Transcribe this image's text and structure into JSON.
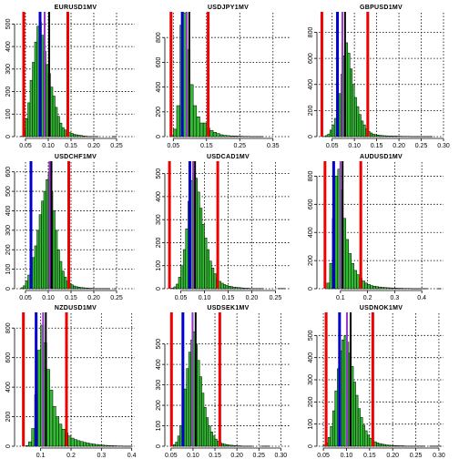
{
  "figure": {
    "rows": 3,
    "cols": 3
  },
  "colors": {
    "bar_fill": "#33bb33",
    "bar_stroke": "#000000",
    "grid": "#000000",
    "red_line": "#ee0000",
    "blue_line": "#0000cc",
    "purple_line": "#9933cc",
    "black_line": "#000000"
  },
  "chart_data": [
    {
      "type": "bar",
      "title": "EURUSD1MV",
      "xlim": [
        0.03,
        0.29
      ],
      "ylim": [
        0,
        550
      ],
      "xticks": [
        0.05,
        0.1,
        0.15,
        0.2,
        0.25
      ],
      "xtick_labels": [
        "0.05",
        "0.10",
        "0.15",
        "0.20",
        "0.25"
      ],
      "yticks": [
        0,
        100,
        200,
        300,
        400,
        500
      ],
      "ytick_labels": [
        "0",
        "100",
        "200",
        "300",
        "400",
        "500"
      ],
      "bin_start": 0.04,
      "bin_width": 0.005,
      "values": [
        2,
        30,
        80,
        150,
        250,
        330,
        420,
        490,
        510,
        450,
        380,
        320,
        280,
        220,
        180,
        130,
        90,
        60,
        40,
        30,
        25,
        18,
        14,
        10,
        8,
        6,
        5,
        3,
        2,
        1,
        1,
        1,
        1,
        1,
        0,
        0,
        0,
        0,
        0,
        0,
        1,
        1
      ],
      "vlines": [
        {
          "x": 0.046,
          "color": "red"
        },
        {
          "x": 0.143,
          "color": "red"
        },
        {
          "x": 0.082,
          "color": "blue"
        },
        {
          "x": 0.092,
          "color": "purple"
        },
        {
          "x": 0.102,
          "color": "black"
        }
      ]
    },
    {
      "type": "bar",
      "title": "USDJPY1MV",
      "xlim": [
        0.03,
        0.4
      ],
      "ylim": [
        0,
        1000
      ],
      "xticks": [
        0.05,
        0.15,
        0.25,
        0.35
      ],
      "xtick_labels": [
        "0.05",
        "0.15",
        "0.25",
        "0.35"
      ],
      "yticks": [
        0,
        200,
        400,
        600,
        800
      ],
      "ytick_labels": [
        "0",
        "200",
        "400",
        "600",
        "800"
      ],
      "bin_start": 0.04,
      "bin_width": 0.01,
      "values": [
        10,
        60,
        250,
        900,
        1000,
        700,
        420,
        250,
        160,
        110,
        110,
        70,
        50,
        35,
        25,
        15,
        10,
        8,
        6,
        5,
        4,
        3,
        2,
        2,
        1,
        1,
        1,
        1,
        0,
        0,
        0,
        0,
        0
      ],
      "vlines": [
        {
          "x": 0.043,
          "color": "red"
        },
        {
          "x": 0.155,
          "color": "red"
        },
        {
          "x": 0.077,
          "color": "blue"
        },
        {
          "x": 0.09,
          "color": "purple"
        },
        {
          "x": 0.098,
          "color": "black"
        }
      ]
    },
    {
      "type": "bar",
      "title": "GBPUSD1MV",
      "xlim": [
        0.02,
        0.3
      ],
      "ylim": [
        0,
        950
      ],
      "xticks": [
        0.05,
        0.1,
        0.15,
        0.2,
        0.25,
        0.3
      ],
      "xtick_labels": [
        "0.05",
        "0.10",
        "0.15",
        "0.20",
        "0.25",
        "0.30"
      ],
      "yticks": [
        0,
        200,
        400,
        600,
        800
      ],
      "ytick_labels": [
        "0",
        "200",
        "400",
        "600",
        "800"
      ],
      "bin_start": 0.03,
      "bin_width": 0.005,
      "values": [
        2,
        8,
        20,
        50,
        90,
        140,
        220,
        330,
        480,
        620,
        720,
        640,
        520,
        400,
        300,
        230,
        170,
        120,
        90,
        60,
        40,
        28,
        20,
        15,
        12,
        10,
        8,
        7,
        6,
        5,
        5,
        4,
        4,
        3,
        3,
        2,
        2,
        2,
        2,
        1,
        1,
        1,
        1,
        1,
        1,
        1,
        1,
        1,
        1,
        0,
        0,
        0,
        0,
        0
      ],
      "vlines": [
        {
          "x": 0.027,
          "color": "red"
        },
        {
          "x": 0.13,
          "color": "red"
        },
        {
          "x": 0.062,
          "color": "blue"
        },
        {
          "x": 0.073,
          "color": "purple"
        },
        {
          "x": 0.079,
          "color": "black"
        }
      ]
    },
    {
      "type": "bar",
      "title": "USDCHF1MV",
      "xlim": [
        0.03,
        0.29
      ],
      "ylim": [
        0,
        650
      ],
      "xticks": [
        0.05,
        0.1,
        0.15,
        0.2,
        0.25
      ],
      "xtick_labels": [
        "0.05",
        "0.10",
        "0.15",
        "0.20",
        "0.25"
      ],
      "yticks": [
        0,
        100,
        200,
        300,
        400,
        500,
        600
      ],
      "ytick_labels": [
        "0",
        "100",
        "200",
        "300",
        "400",
        "500",
        "600"
      ],
      "bin_start": 0.04,
      "bin_width": 0.005,
      "values": [
        5,
        15,
        40,
        70,
        110,
        160,
        220,
        300,
        380,
        450,
        500,
        560,
        600,
        500,
        400,
        300,
        200,
        140,
        90,
        60,
        40,
        28,
        20,
        14,
        10,
        8,
        6,
        5,
        4,
        3,
        2,
        2,
        1,
        1,
        1,
        1,
        1,
        1,
        1,
        0,
        0,
        1
      ],
      "vlines": [
        {
          "x": 0.062,
          "color": "blue"
        },
        {
          "x": 0.103,
          "color": "purple"
        },
        {
          "x": 0.107,
          "color": "black"
        },
        {
          "x": 0.145,
          "color": "red"
        }
      ]
    },
    {
      "type": "bar",
      "title": "USDCAD1MV",
      "xlim": [
        0.02,
        0.28
      ],
      "ylim": [
        0,
        550
      ],
      "xticks": [
        0.05,
        0.1,
        0.15,
        0.2,
        0.25
      ],
      "xtick_labels": [
        "0.05",
        "0.10",
        "0.15",
        "0.20",
        "0.25"
      ],
      "yticks": [
        0,
        100,
        200,
        300,
        400,
        500
      ],
      "ytick_labels": [
        "0",
        "100",
        "200",
        "300",
        "400",
        "500"
      ],
      "bin_start": 0.03,
      "bin_width": 0.005,
      "values": [
        2,
        8,
        20,
        50,
        100,
        170,
        260,
        380,
        470,
        500,
        480,
        420,
        350,
        280,
        220,
        170,
        120,
        90,
        65,
        45,
        32,
        24,
        18,
        14,
        11,
        9,
        7,
        6,
        5,
        4,
        3,
        2,
        2,
        1,
        1,
        1,
        1,
        1,
        1,
        0,
        0,
        0,
        0,
        0,
        0,
        1,
        1,
        1
      ],
      "vlines": [
        {
          "x": 0.026,
          "color": "red"
        },
        {
          "x": 0.128,
          "color": "red"
        },
        {
          "x": 0.069,
          "color": "blue"
        },
        {
          "x": 0.076,
          "color": "purple"
        },
        {
          "x": 0.08,
          "color": "black"
        }
      ]
    },
    {
      "type": "bar",
      "title": "AUDUSD1MV",
      "xlim": [
        0.02,
        0.48
      ],
      "ylim": [
        0,
        900
      ],
      "xticks": [
        0.1,
        0.2,
        0.3,
        0.4
      ],
      "xtick_labels": [
        "0.1",
        "0.2",
        "0.3",
        "0.4"
      ],
      "yticks": [
        0,
        200,
        400,
        600,
        800
      ],
      "ytick_labels": [
        "0",
        "200",
        "400",
        "600",
        "800"
      ],
      "bin_start": 0.05,
      "bin_width": 0.01,
      "values": [
        40,
        180,
        500,
        800,
        850,
        700,
        500,
        350,
        250,
        180,
        130,
        100,
        75,
        55,
        40,
        30,
        22,
        18,
        15,
        12,
        10,
        8,
        7,
        6,
        5,
        4,
        3,
        3,
        2,
        2,
        2,
        1,
        1,
        1,
        1,
        1,
        1,
        0,
        0,
        0,
        0,
        1
      ],
      "vlines": [
        {
          "x": 0.043,
          "color": "red"
        },
        {
          "x": 0.175,
          "color": "red"
        },
        {
          "x": 0.075,
          "color": "blue"
        },
        {
          "x": 0.1,
          "color": "purple"
        },
        {
          "x": 0.108,
          "color": "black"
        }
      ]
    },
    {
      "type": "bar",
      "title": "NZDUSD1MV",
      "xlim": [
        0.02,
        0.41
      ],
      "ylim": [
        0,
        900
      ],
      "xticks": [
        0.1,
        0.2,
        0.3,
        0.4
      ],
      "xtick_labels": [
        "0.1",
        "0.2",
        "0.3",
        "0.4"
      ],
      "yticks": [
        0,
        200,
        400,
        600,
        800
      ],
      "ytick_labels": [
        "0",
        "200",
        "400",
        "600",
        "800"
      ],
      "bin_start": 0.05,
      "bin_width": 0.01,
      "values": [
        5,
        30,
        120,
        350,
        650,
        820,
        700,
        520,
        380,
        270,
        200,
        150,
        115,
        90,
        70,
        55,
        45,
        38,
        32,
        26,
        22,
        18,
        15,
        12,
        10,
        8,
        6,
        5,
        4,
        3,
        2,
        2,
        1,
        1,
        1
      ],
      "vlines": [
        {
          "x": 0.043,
          "color": "red"
        },
        {
          "x": 0.185,
          "color": "red"
        },
        {
          "x": 0.085,
          "color": "blue"
        },
        {
          "x": 0.108,
          "color": "purple"
        },
        {
          "x": 0.117,
          "color": "black"
        }
      ]
    },
    {
      "type": "bar",
      "title": "USDSEK1MV",
      "xlim": [
        0.04,
        0.32
      ],
      "ylim": [
        0,
        650
      ],
      "xticks": [
        0.05,
        0.1,
        0.15,
        0.2,
        0.25,
        0.3
      ],
      "xtick_labels": [
        "0.05",
        "0.10",
        "0.15",
        "0.20",
        "0.25",
        "0.30"
      ],
      "yticks": [
        0,
        100,
        200,
        300,
        400,
        500
      ],
      "ytick_labels": [
        "0",
        "100",
        "200",
        "300",
        "400",
        "500"
      ],
      "bin_start": 0.05,
      "bin_width": 0.005,
      "values": [
        2,
        8,
        20,
        50,
        100,
        180,
        280,
        380,
        460,
        520,
        560,
        500,
        420,
        340,
        260,
        190,
        140,
        100,
        70,
        50,
        35,
        25,
        18,
        13,
        10,
        8,
        6,
        5,
        4,
        3,
        2,
        2,
        1,
        1,
        1,
        1,
        1,
        0,
        0,
        0,
        0,
        1,
        1,
        1,
        1
      ],
      "vlines": [
        {
          "x": 0.051,
          "color": "red"
        },
        {
          "x": 0.161,
          "color": "red"
        },
        {
          "x": 0.077,
          "color": "blue"
        },
        {
          "x": 0.099,
          "color": "purple"
        },
        {
          "x": 0.106,
          "color": "black"
        }
      ]
    },
    {
      "type": "bar",
      "title": "USDNOK1MV",
      "xlim": [
        0.04,
        0.31
      ],
      "ylim": [
        0,
        600
      ],
      "xticks": [
        0.05,
        0.1,
        0.15,
        0.2,
        0.25,
        0.3
      ],
      "xtick_labels": [
        "0.05",
        "0.10",
        "0.15",
        "0.20",
        "0.25",
        "0.30"
      ],
      "yticks": [
        0,
        100,
        200,
        300,
        400,
        500
      ],
      "ytick_labels": [
        "0",
        "100",
        "200",
        "300",
        "400",
        "500"
      ],
      "bin_start": 0.05,
      "bin_width": 0.005,
      "values": [
        5,
        15,
        40,
        90,
        160,
        250,
        350,
        430,
        480,
        500,
        470,
        420,
        360,
        290,
        230,
        170,
        130,
        95,
        70,
        50,
        36,
        26,
        20,
        15,
        12,
        10,
        8,
        6,
        5,
        4,
        3,
        3,
        2,
        2,
        2,
        1,
        1,
        1,
        1,
        1,
        1,
        1,
        1,
        1,
        0,
        0,
        1,
        1,
        1,
        1,
        1
      ],
      "vlines": [
        {
          "x": 0.056,
          "color": "red"
        },
        {
          "x": 0.157,
          "color": "red"
        },
        {
          "x": 0.085,
          "color": "blue"
        },
        {
          "x": 0.101,
          "color": "purple"
        },
        {
          "x": 0.109,
          "color": "black"
        }
      ]
    }
  ]
}
